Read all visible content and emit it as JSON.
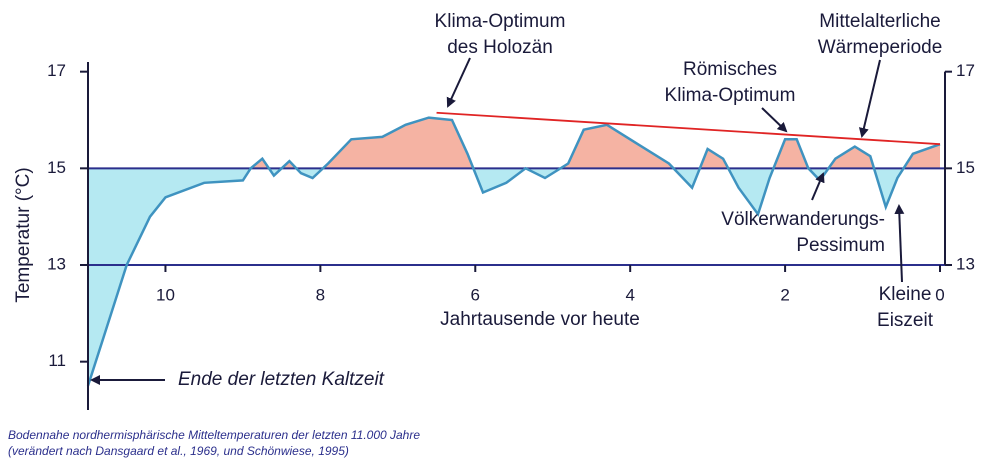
{
  "chart_data": {
    "type": "line",
    "ylabel": "Temperatur (°C)",
    "xlabel": "Jahrtausende vor heute",
    "x": [
      11.0,
      10.8,
      10.5,
      10.2,
      10.0,
      9.5,
      9.0,
      8.9,
      8.75,
      8.6,
      8.4,
      8.25,
      8.1,
      7.9,
      7.6,
      7.2,
      6.9,
      6.6,
      6.3,
      6.1,
      5.9,
      5.6,
      5.35,
      5.1,
      4.8,
      4.6,
      4.3,
      3.9,
      3.5,
      3.2,
      3.0,
      2.8,
      2.6,
      2.35,
      2.2,
      2.0,
      1.85,
      1.7,
      1.55,
      1.35,
      1.1,
      0.9,
      0.7,
      0.55,
      0.35,
      0.0
    ],
    "series": [
      {
        "color": "#3f93c0",
        "values": [
          10.5,
          11.5,
          13.0,
          14.0,
          14.4,
          14.7,
          14.75,
          15.0,
          15.2,
          14.85,
          15.15,
          14.9,
          14.8,
          15.1,
          15.6,
          15.65,
          15.9,
          16.05,
          16.0,
          15.3,
          14.5,
          14.7,
          15.0,
          14.8,
          15.1,
          15.8,
          15.9,
          15.5,
          15.1,
          14.6,
          15.4,
          15.2,
          14.6,
          14.05,
          14.8,
          15.6,
          15.6,
          15.0,
          14.75,
          15.2,
          15.45,
          15.25,
          14.2,
          14.8,
          15.3,
          15.5
        ]
      }
    ],
    "fill_above": "#f5b3a3",
    "fill_below": "#b5e9f2",
    "baseline": 15,
    "hlines": [
      15,
      13
    ],
    "hline_color": "#2b2f8c",
    "trend": {
      "x": [
        6.5,
        0
      ],
      "values": [
        16.15,
        15.5
      ],
      "color": "#e02424"
    },
    "xlim": [
      11,
      0
    ],
    "xticks": [
      10,
      8,
      6,
      4,
      2,
      0
    ],
    "ylim": [
      10,
      17.2
    ],
    "yticks": [
      17,
      15,
      13,
      11
    ],
    "y2ticks": [
      17,
      15,
      13
    ],
    "annotations": [
      {
        "lines": [
          "Klima-Optimum",
          "des Holozän"
        ]
      },
      {
        "lines": [
          "Mittelalterliche",
          "Wärmeperiode"
        ]
      },
      {
        "lines": [
          "Römisches",
          "Klima-Optimum"
        ]
      },
      {
        "lines": [
          "Völkerwanderungs-",
          "Pessimum"
        ]
      },
      {
        "lines": [
          "Kleine",
          "Eiszeit"
        ]
      },
      {
        "lines": [
          "Ende der letzten Kaltzeit"
        ]
      }
    ],
    "caption": [
      "Bodennahe nordhermisphärische Mitteltemperaturen der letzten 11.000 Jahre",
      "(verändert nach Dansgaard et al., 1969, und Schönwiese, 1995)"
    ]
  }
}
